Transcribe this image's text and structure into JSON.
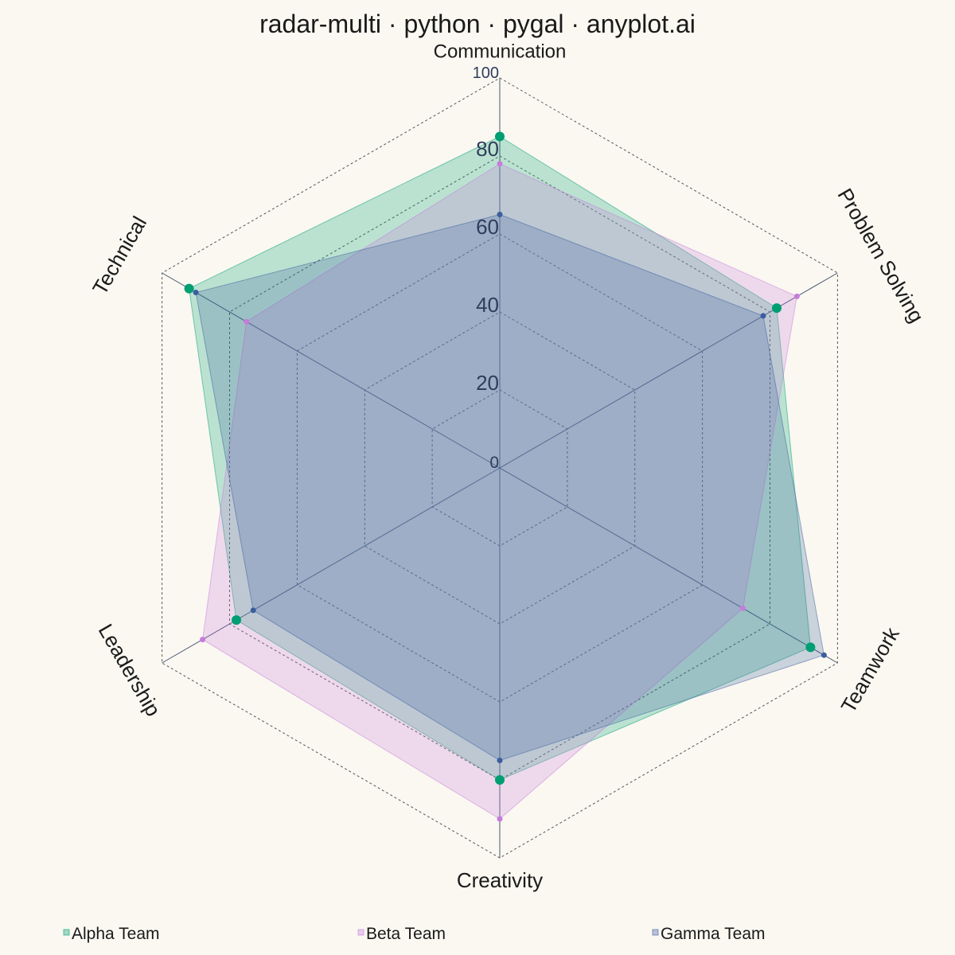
{
  "chart_data": {
    "type": "radar",
    "title": "radar-multi · python · pygal · anyplot.ai",
    "axes": [
      "Communication",
      "Problem Solving",
      "Teamwork",
      "Creativity",
      "Leadership",
      "Technical"
    ],
    "rlim": [
      0,
      100
    ],
    "ticks": [
      "0",
      "20",
      "40",
      "60",
      "80",
      "100"
    ],
    "tick_values": [
      0,
      20,
      40,
      60,
      80,
      100
    ],
    "grid": true,
    "legend_position": "bottom",
    "series": [
      {
        "name": "Alpha Team",
        "color": "#009e73",
        "values": [
          85,
          82,
          92,
          80,
          78,
          92
        ]
      },
      {
        "name": "Beta Team",
        "color": "#c77cdc",
        "values": [
          78,
          88,
          72,
          90,
          88,
          75
        ]
      },
      {
        "name": "Gamma Team",
        "color": "#3c5e9e",
        "values": [
          65,
          78,
          96,
          75,
          73,
          90
        ]
      }
    ]
  }
}
